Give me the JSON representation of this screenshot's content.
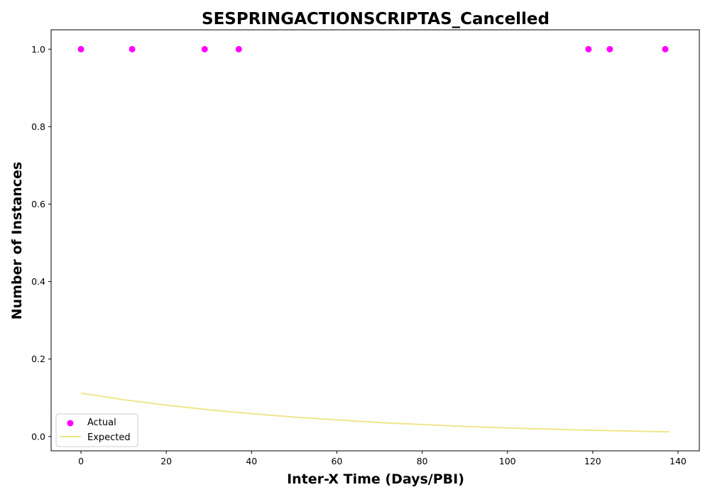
{
  "chart_data": {
    "type": "scatter",
    "title": "SESPRINGACTIONSCRIPTAS_Cancelled",
    "xlabel": "Inter-X Time (Days/PBI)",
    "ylabel": "Number of Instances",
    "xlim": [
      -7,
      145
    ],
    "ylim": [
      -0.037,
      1.05
    ],
    "x_ticks": [
      0,
      20,
      40,
      60,
      80,
      100,
      120,
      140
    ],
    "y_ticks": [
      0.0,
      0.2,
      0.4,
      0.6,
      0.8,
      1.0
    ],
    "grid": false,
    "legend_placement": "lower-left",
    "series": [
      {
        "name": "Actual",
        "kind": "scatter",
        "color": "#ff00ff",
        "x": [
          0,
          12,
          29,
          37,
          119,
          124,
          137
        ],
        "y": [
          1.0,
          1.0,
          1.0,
          1.0,
          1.0,
          1.0,
          1.0
        ]
      },
      {
        "name": "Expected",
        "kind": "line",
        "color": "#f0e68c",
        "x": [
          0,
          10,
          20,
          30,
          40,
          50,
          60,
          70,
          80,
          90,
          100,
          110,
          120,
          130,
          138
        ],
        "y": [
          0.112,
          0.095,
          0.081,
          0.069,
          0.059,
          0.05,
          0.043,
          0.036,
          0.031,
          0.026,
          0.022,
          0.019,
          0.016,
          0.014,
          0.012
        ]
      }
    ]
  }
}
